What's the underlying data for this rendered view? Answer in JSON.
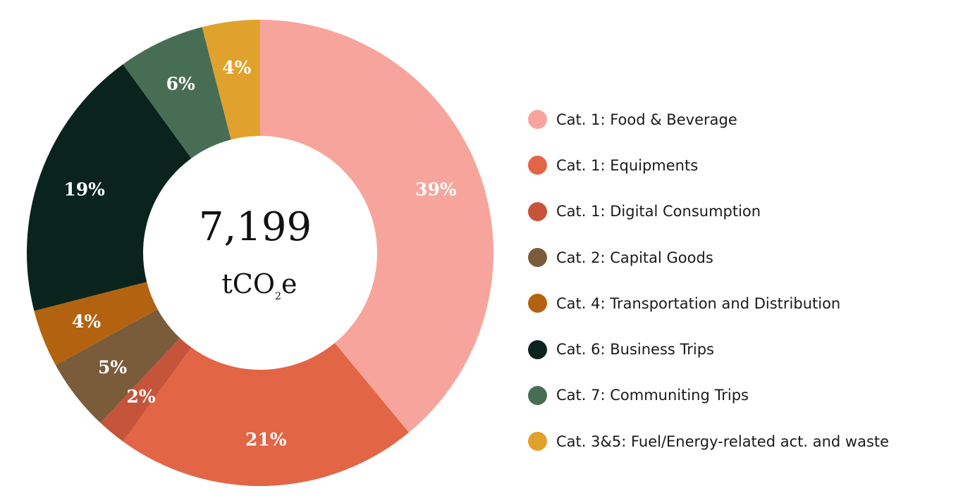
{
  "chart_data": {
    "type": "donut",
    "center": {
      "total": "7,199",
      "unit_main": "tCO",
      "unit_sub": "2",
      "unit_end": "e"
    },
    "slices": [
      {
        "label": "Cat. 1: Food & Beverage",
        "value": 39,
        "display": "39%",
        "color": "#f7a59c"
      },
      {
        "label": "Cat. 1: Equipments",
        "value": 21,
        "display": "21%",
        "color": "#e26546"
      },
      {
        "label": "Cat. 1: Digital Consumption",
        "value": 2,
        "display": "2%",
        "color": "#c5543a"
      },
      {
        "label": "Cat. 2: Capital Goods",
        "value": 5,
        "display": "5%",
        "color": "#7a5b3a"
      },
      {
        "label": "Cat. 4: Transportation and Distribution",
        "value": 4,
        "display": "4%",
        "color": "#b3630f"
      },
      {
        "label": "Cat. 6: Business Trips",
        "value": 19,
        "display": "19%",
        "color": "#0a231d"
      },
      {
        "label": "Cat. 7: Communiting Trips",
        "value": 6,
        "display": "6%",
        "color": "#476e54"
      },
      {
        "label": "Cat. 3&5: Fuel/Energy-related act. and waste",
        "value": 4,
        "display": "4%",
        "color": "#e0a22c"
      }
    ]
  }
}
